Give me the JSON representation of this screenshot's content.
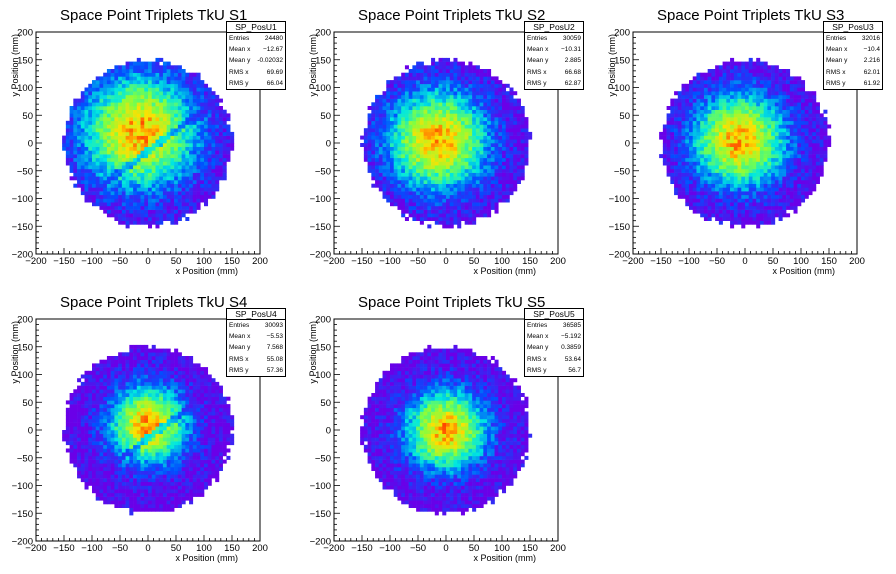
{
  "colors": {
    "low": "#6a00e8",
    "mid1": "#0050ff",
    "mid2": "#00e8e0",
    "mid3": "#80ff40",
    "mid4": "#ffe000",
    "high": "#ff0000"
  },
  "chart_data": [
    {
      "type": "heatmap",
      "title": "Space Point Triplets TkU S1",
      "histogram_name": "SP_PosU1",
      "xlabel": "x Position (mm)",
      "ylabel": "y Position (mm)",
      "xlim": [
        -200,
        200
      ],
      "ylim": [
        -200,
        200
      ],
      "xticks": [
        "−200",
        "−150",
        "−100",
        "−50",
        "0",
        "50",
        "100",
        "150",
        "200"
      ],
      "yticks": [
        "−200",
        "−150",
        "−100",
        "−50",
        "0",
        "50",
        "100",
        "150",
        "200"
      ],
      "stats": [
        {
          "label": "Entries",
          "value": "24480"
        },
        {
          "label": "Mean x",
          "value": "−12.67"
        },
        {
          "label": "Mean y",
          "value": "-0.02032"
        },
        {
          "label": "RMS x",
          "value": "69.69"
        },
        {
          "label": "RMS y",
          "value": "66.04"
        }
      ],
      "distribution": {
        "center_x": -15,
        "center_y": 20,
        "radius": 150,
        "sigma": 70,
        "diagonal_gap": true,
        "grid": false
      }
    },
    {
      "type": "heatmap",
      "title": "Space Point Triplets TkU S2",
      "histogram_name": "SP_PosU2",
      "xlabel": "x Position (mm)",
      "ylabel": "y Position (mm)",
      "xlim": [
        -200,
        200
      ],
      "ylim": [
        -200,
        200
      ],
      "xticks": [
        "−200",
        "−150",
        "−100",
        "−50",
        "0",
        "50",
        "100",
        "150",
        "200"
      ],
      "yticks": [
        "−200",
        "−150",
        "−100",
        "−50",
        "0",
        "50",
        "100",
        "150",
        "200"
      ],
      "stats": [
        {
          "label": "Entries",
          "value": "30059"
        },
        {
          "label": "Mean x",
          "value": "−10.31"
        },
        {
          "label": "Mean y",
          "value": "2.885"
        },
        {
          "label": "RMS x",
          "value": "66.68"
        },
        {
          "label": "RMS y",
          "value": "62.87"
        }
      ],
      "distribution": {
        "center_x": -15,
        "center_y": 5,
        "radius": 150,
        "sigma": 62,
        "diagonal_gap": false,
        "grid": false
      }
    },
    {
      "type": "heatmap",
      "title": "Space Point Triplets TkU S3",
      "histogram_name": "SP_PosU3",
      "xlabel": "x Position (mm)",
      "ylabel": "y Position (mm)",
      "xlim": [
        -200,
        200
      ],
      "ylim": [
        -200,
        200
      ],
      "xticks": [
        "−200",
        "−150",
        "−100",
        "−50",
        "0",
        "50",
        "100",
        "150",
        "200"
      ],
      "yticks": [
        "−200",
        "−150",
        "−100",
        "−50",
        "0",
        "50",
        "100",
        "150",
        "200"
      ],
      "stats": [
        {
          "label": "Entries",
          "value": "32016"
        },
        {
          "label": "Mean x",
          "value": "−10.4"
        },
        {
          "label": "Mean y",
          "value": "2.216"
        },
        {
          "label": "RMS x",
          "value": "62.01"
        },
        {
          "label": "RMS y",
          "value": "61.92"
        }
      ],
      "distribution": {
        "center_x": -10,
        "center_y": 5,
        "radius": 150,
        "sigma": 58,
        "diagonal_gap": false,
        "grid": false
      }
    },
    {
      "type": "heatmap",
      "title": "Space Point Triplets TkU S4",
      "histogram_name": "SP_PosU4",
      "xlabel": "x Position (mm)",
      "ylabel": "y Position (mm)",
      "xlim": [
        -200,
        200
      ],
      "ylim": [
        -200,
        200
      ],
      "xticks": [
        "−200",
        "−150",
        "−100",
        "−50",
        "0",
        "50",
        "100",
        "150",
        "200"
      ],
      "yticks": [
        "−200",
        "−150",
        "−100",
        "−50",
        "0",
        "50",
        "100",
        "150",
        "200"
      ],
      "stats": [
        {
          "label": "Entries",
          "value": "30093"
        },
        {
          "label": "Mean x",
          "value": "−5.53"
        },
        {
          "label": "Mean y",
          "value": "7.568"
        },
        {
          "label": "RMS x",
          "value": "55.08"
        },
        {
          "label": "RMS y",
          "value": "57.36"
        }
      ],
      "distribution": {
        "center_x": 0,
        "center_y": 10,
        "radius": 150,
        "sigma": 48,
        "diagonal_gap": true,
        "grid": false
      }
    },
    {
      "type": "heatmap",
      "title": "Space Point Triplets TkU S5",
      "histogram_name": "SP_PosU5",
      "xlabel": "x Position (mm)",
      "ylabel": "y Position (mm)",
      "xlim": [
        -200,
        200
      ],
      "ylim": [
        -200,
        200
      ],
      "xticks": [
        "−200",
        "−150",
        "−100",
        "−50",
        "0",
        "50",
        "100",
        "150",
        "200"
      ],
      "yticks": [
        "−200",
        "−150",
        "−100",
        "−50",
        "0",
        "50",
        "100",
        "150",
        "200"
      ],
      "stats": [
        {
          "label": "Entries",
          "value": "36585"
        },
        {
          "label": "Mean x",
          "value": "−5.192"
        },
        {
          "label": "Mean y",
          "value": "0.3859"
        },
        {
          "label": "RMS x",
          "value": "53.64"
        },
        {
          "label": "RMS y",
          "value": "56.7"
        }
      ],
      "distribution": {
        "center_x": 0,
        "center_y": 0,
        "radius": 150,
        "sigma": 50,
        "diagonal_gap": false,
        "grid": false
      }
    }
  ]
}
